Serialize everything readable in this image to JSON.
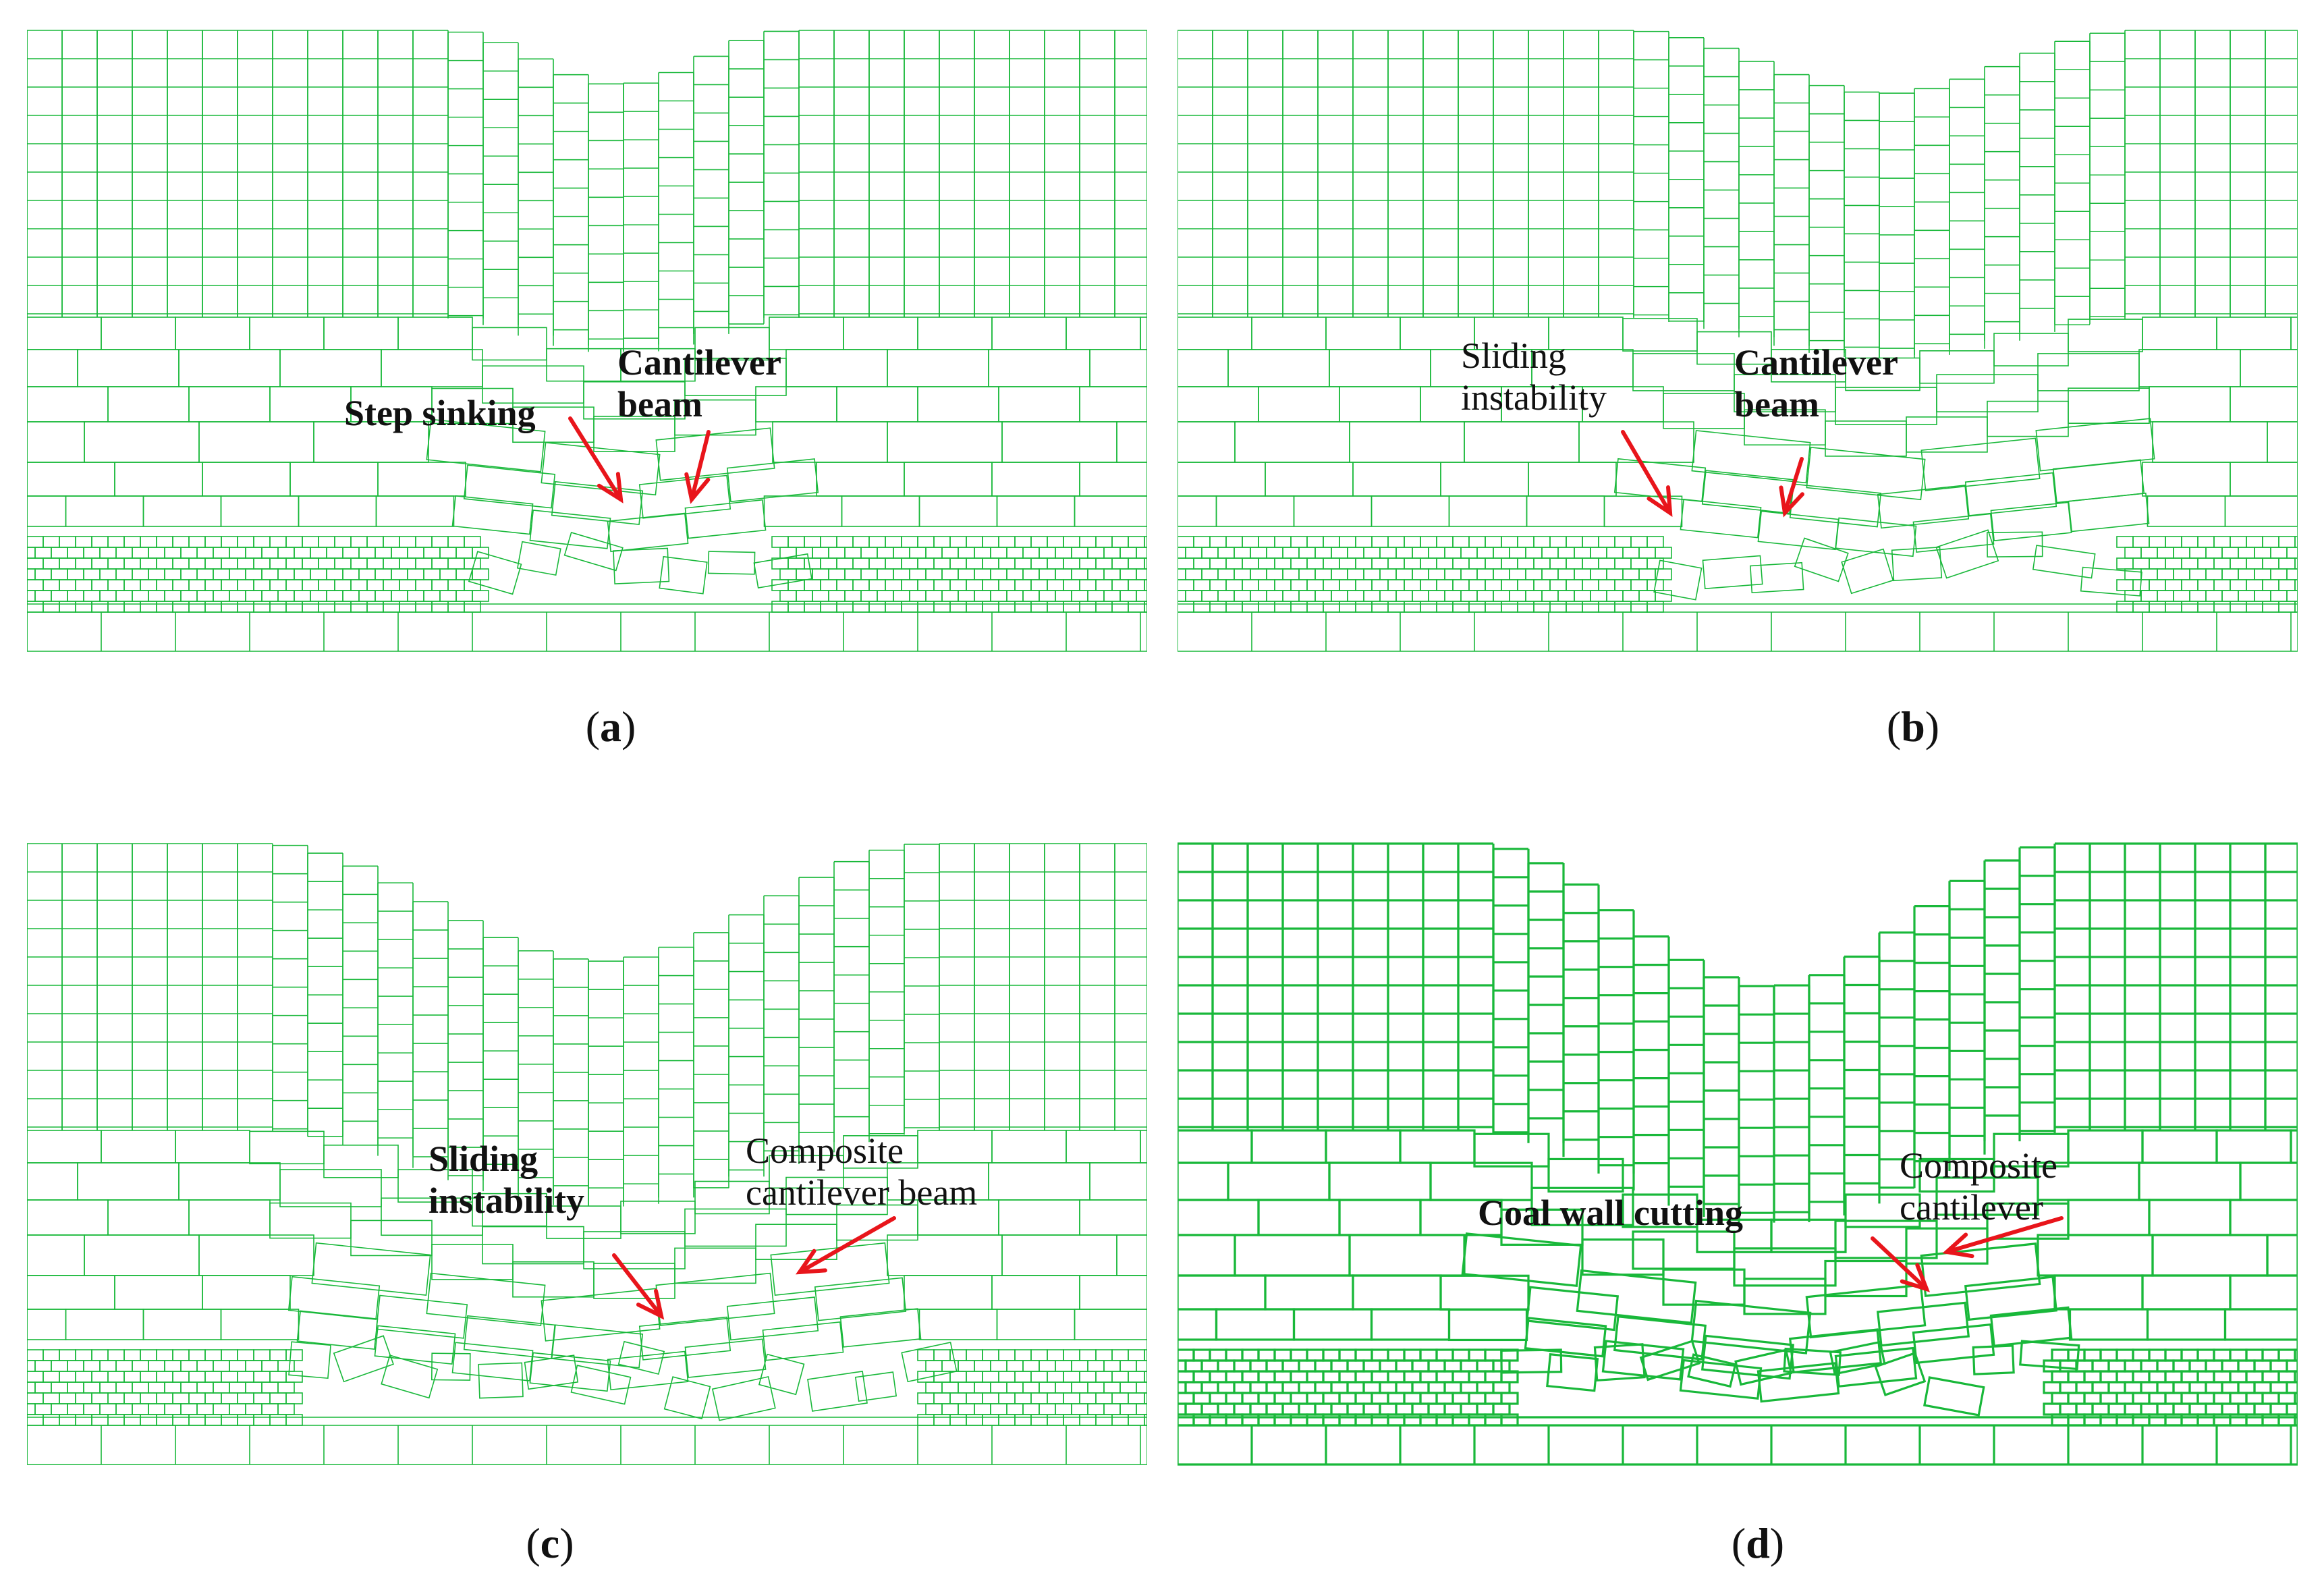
{
  "colors": {
    "mesh": "#19b83a",
    "arrow": "#e8151b",
    "text": "#111111"
  },
  "panels": [
    {
      "id": "a",
      "caption": "a",
      "labels": [
        {
          "key": "step_sinking",
          "lines": [
            "Step sinking"
          ],
          "bold": true
        },
        {
          "key": "cantilever_beam",
          "lines": [
            "Cantilever",
            "beam"
          ],
          "bold": true
        }
      ]
    },
    {
      "id": "b",
      "caption": "b",
      "labels": [
        {
          "key": "sliding_instability",
          "lines": [
            "Sliding",
            "instability"
          ],
          "bold": false
        },
        {
          "key": "cantilever_beam",
          "lines": [
            "Cantilever",
            "beam"
          ],
          "bold": true
        }
      ]
    },
    {
      "id": "c",
      "caption": "c",
      "labels": [
        {
          "key": "sliding_instability",
          "lines": [
            "Sliding",
            "instability"
          ],
          "bold": true
        },
        {
          "key": "composite_cantilever_beam",
          "lines": [
            "Composite",
            "cantilever beam"
          ],
          "bold": false
        }
      ]
    },
    {
      "id": "d",
      "caption": "d",
      "labels": [
        {
          "key": "coal_wall_cutting",
          "lines": [
            "Coal wall cutting"
          ],
          "bold": true
        },
        {
          "key": "composite_cantilever",
          "lines": [
            "Composite",
            "cantilever"
          ],
          "bold": false
        }
      ]
    }
  ]
}
